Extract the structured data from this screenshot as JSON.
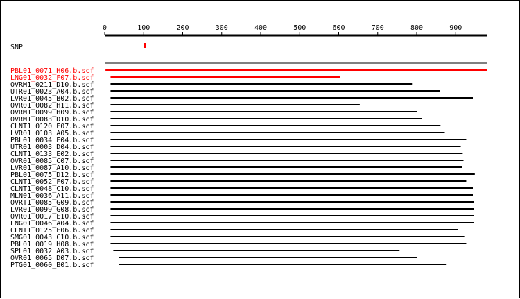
{
  "colors": {
    "highlight": "#ff0000",
    "line": "#000000",
    "background": "#ffffff"
  },
  "ruler": {
    "min": 0,
    "max": 980,
    "ticks": [
      0,
      100,
      200,
      300,
      400,
      500,
      600,
      700,
      800,
      900
    ]
  },
  "snp": {
    "label": "SNP",
    "position": 104
  },
  "reference": {
    "start": 0,
    "end": 980
  },
  "reads": [
    {
      "name": "PBL01_0071_H06.b.scf",
      "start": 2,
      "end": 980,
      "highlight": true
    },
    {
      "name": "LNG01_0032_F07.b.scf",
      "start": 15,
      "end": 603,
      "highlight": true
    },
    {
      "name": "OVRM1_0211_D10.b.scf",
      "start": 15,
      "end": 788,
      "highlight": false
    },
    {
      "name": "UTR01_0023_A04.b.scf",
      "start": 15,
      "end": 860,
      "highlight": false
    },
    {
      "name": "LVR01_0045_B02.b.scf",
      "start": 15,
      "end": 944,
      "highlight": false
    },
    {
      "name": "OVR01_0082_H11.b.scf",
      "start": 15,
      "end": 654,
      "highlight": false
    },
    {
      "name": "OVRM1_0099_H09.b.scf",
      "start": 15,
      "end": 800,
      "highlight": false
    },
    {
      "name": "OVRM1_0083_D10.b.scf",
      "start": 15,
      "end": 813,
      "highlight": false
    },
    {
      "name": "CLNT1_0120_E07.b.scf",
      "start": 15,
      "end": 861,
      "highlight": false
    },
    {
      "name": "LVR01_0103_A05.b.scf",
      "start": 15,
      "end": 872,
      "highlight": false
    },
    {
      "name": "PBL01_0034_E04.b.scf",
      "start": 15,
      "end": 927,
      "highlight": false
    },
    {
      "name": "UTR01_0003_D04.b.scf",
      "start": 15,
      "end": 913,
      "highlight": false
    },
    {
      "name": "CLNT1_0133_E02.b.scf",
      "start": 15,
      "end": 918,
      "highlight": false
    },
    {
      "name": "OVR01_0085_C07.b.scf",
      "start": 15,
      "end": 920,
      "highlight": false
    },
    {
      "name": "LVR01_0087_A10.b.scf",
      "start": 15,
      "end": 916,
      "highlight": false
    },
    {
      "name": "PBL01_0075_D12.b.scf",
      "start": 15,
      "end": 949,
      "highlight": false
    },
    {
      "name": "CLNT1_0052_F07.b.scf",
      "start": 15,
      "end": 927,
      "highlight": false
    },
    {
      "name": "CLNT1_0048_C10.b.scf",
      "start": 15,
      "end": 944,
      "highlight": false
    },
    {
      "name": "MLN01_0036_A11.b.scf",
      "start": 15,
      "end": 944,
      "highlight": false
    },
    {
      "name": "OVRT1_0085_G09.b.scf",
      "start": 15,
      "end": 946,
      "highlight": false
    },
    {
      "name": "LVR01_0099_G08.b.scf",
      "start": 15,
      "end": 946,
      "highlight": false
    },
    {
      "name": "OVR01_0017_E10.b.scf",
      "start": 15,
      "end": 946,
      "highlight": false
    },
    {
      "name": "LNG01_0046_A04.b.scf",
      "start": 15,
      "end": 946,
      "highlight": false
    },
    {
      "name": "CLNT1_0125_E06.b.scf",
      "start": 15,
      "end": 906,
      "highlight": false
    },
    {
      "name": "SMG01_0043_C10.b.scf",
      "start": 15,
      "end": 922,
      "highlight": false
    },
    {
      "name": "PBL01_0019_H08.b.scf",
      "start": 15,
      "end": 927,
      "highlight": false
    },
    {
      "name": "SPL01_0032_A03.b.scf",
      "start": 22,
      "end": 756,
      "highlight": false
    },
    {
      "name": "OVR01_0065_D07.b.scf",
      "start": 36,
      "end": 800,
      "highlight": false
    },
    {
      "name": "PTG01_0060_B01.b.scf",
      "start": 36,
      "end": 875,
      "highlight": false
    }
  ]
}
